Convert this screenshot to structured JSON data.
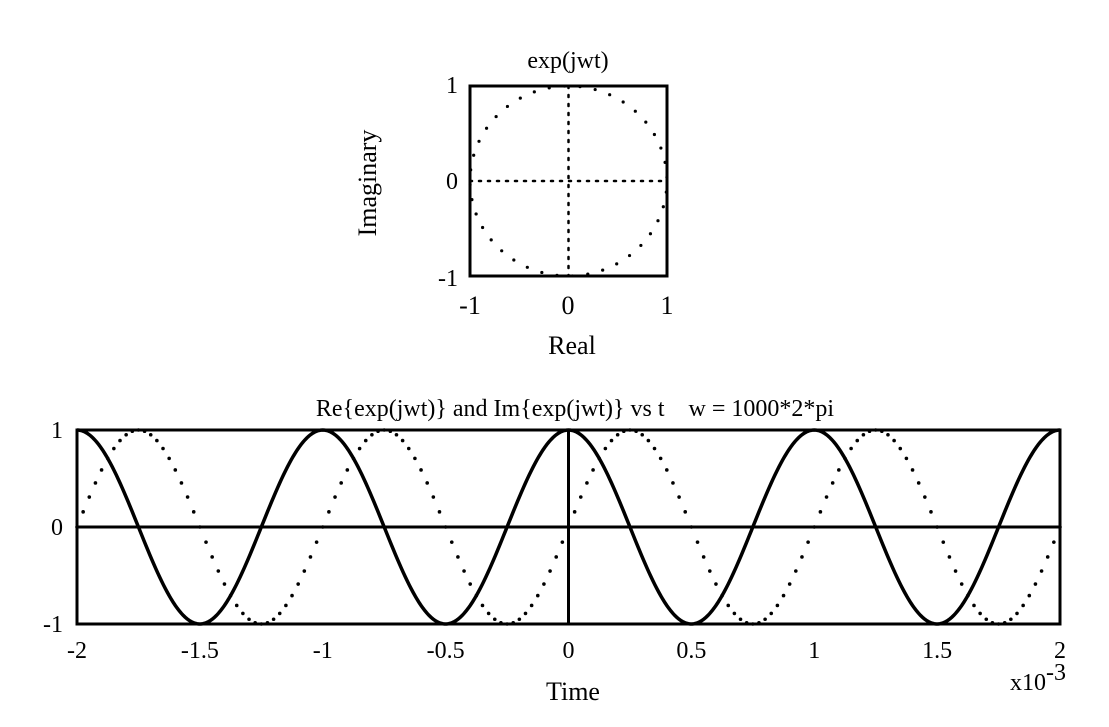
{
  "chart_data": [
    {
      "type": "scatter",
      "title": "exp(jwt)",
      "xlabel": "Real",
      "ylabel": "Imaginary",
      "xlim": [
        -1,
        1
      ],
      "ylim": [
        -1,
        1
      ],
      "xticks": [
        "-1",
        "0",
        "1"
      ],
      "yticks": [
        "1",
        "0",
        "-1"
      ],
      "axes_lines": true,
      "series": [
        {
          "style": "dotted",
          "equation": "x = cos(t), y = sin(t)",
          "points": 40
        }
      ]
    },
    {
      "type": "line",
      "title": "Re{exp(jwt)} and Im{exp(jwt)} vs t    w = 1000*2*pi",
      "xlabel": "Time",
      "ylabel": "",
      "xlim": [
        -0.002,
        0.002
      ],
      "ylim": [
        -1,
        1
      ],
      "xticks": [
        "-2",
        "-1.5",
        "-1",
        "-0.5",
        "0",
        "0.5",
        "1",
        "1.5",
        "2"
      ],
      "yticks": [
        "1",
        "0",
        "-1"
      ],
      "x_exponent": "x10-3",
      "w": 6283.185,
      "series": [
        {
          "component": "real",
          "style": "solid"
        },
        {
          "component": "imag",
          "style": "dotted"
        }
      ]
    }
  ]
}
